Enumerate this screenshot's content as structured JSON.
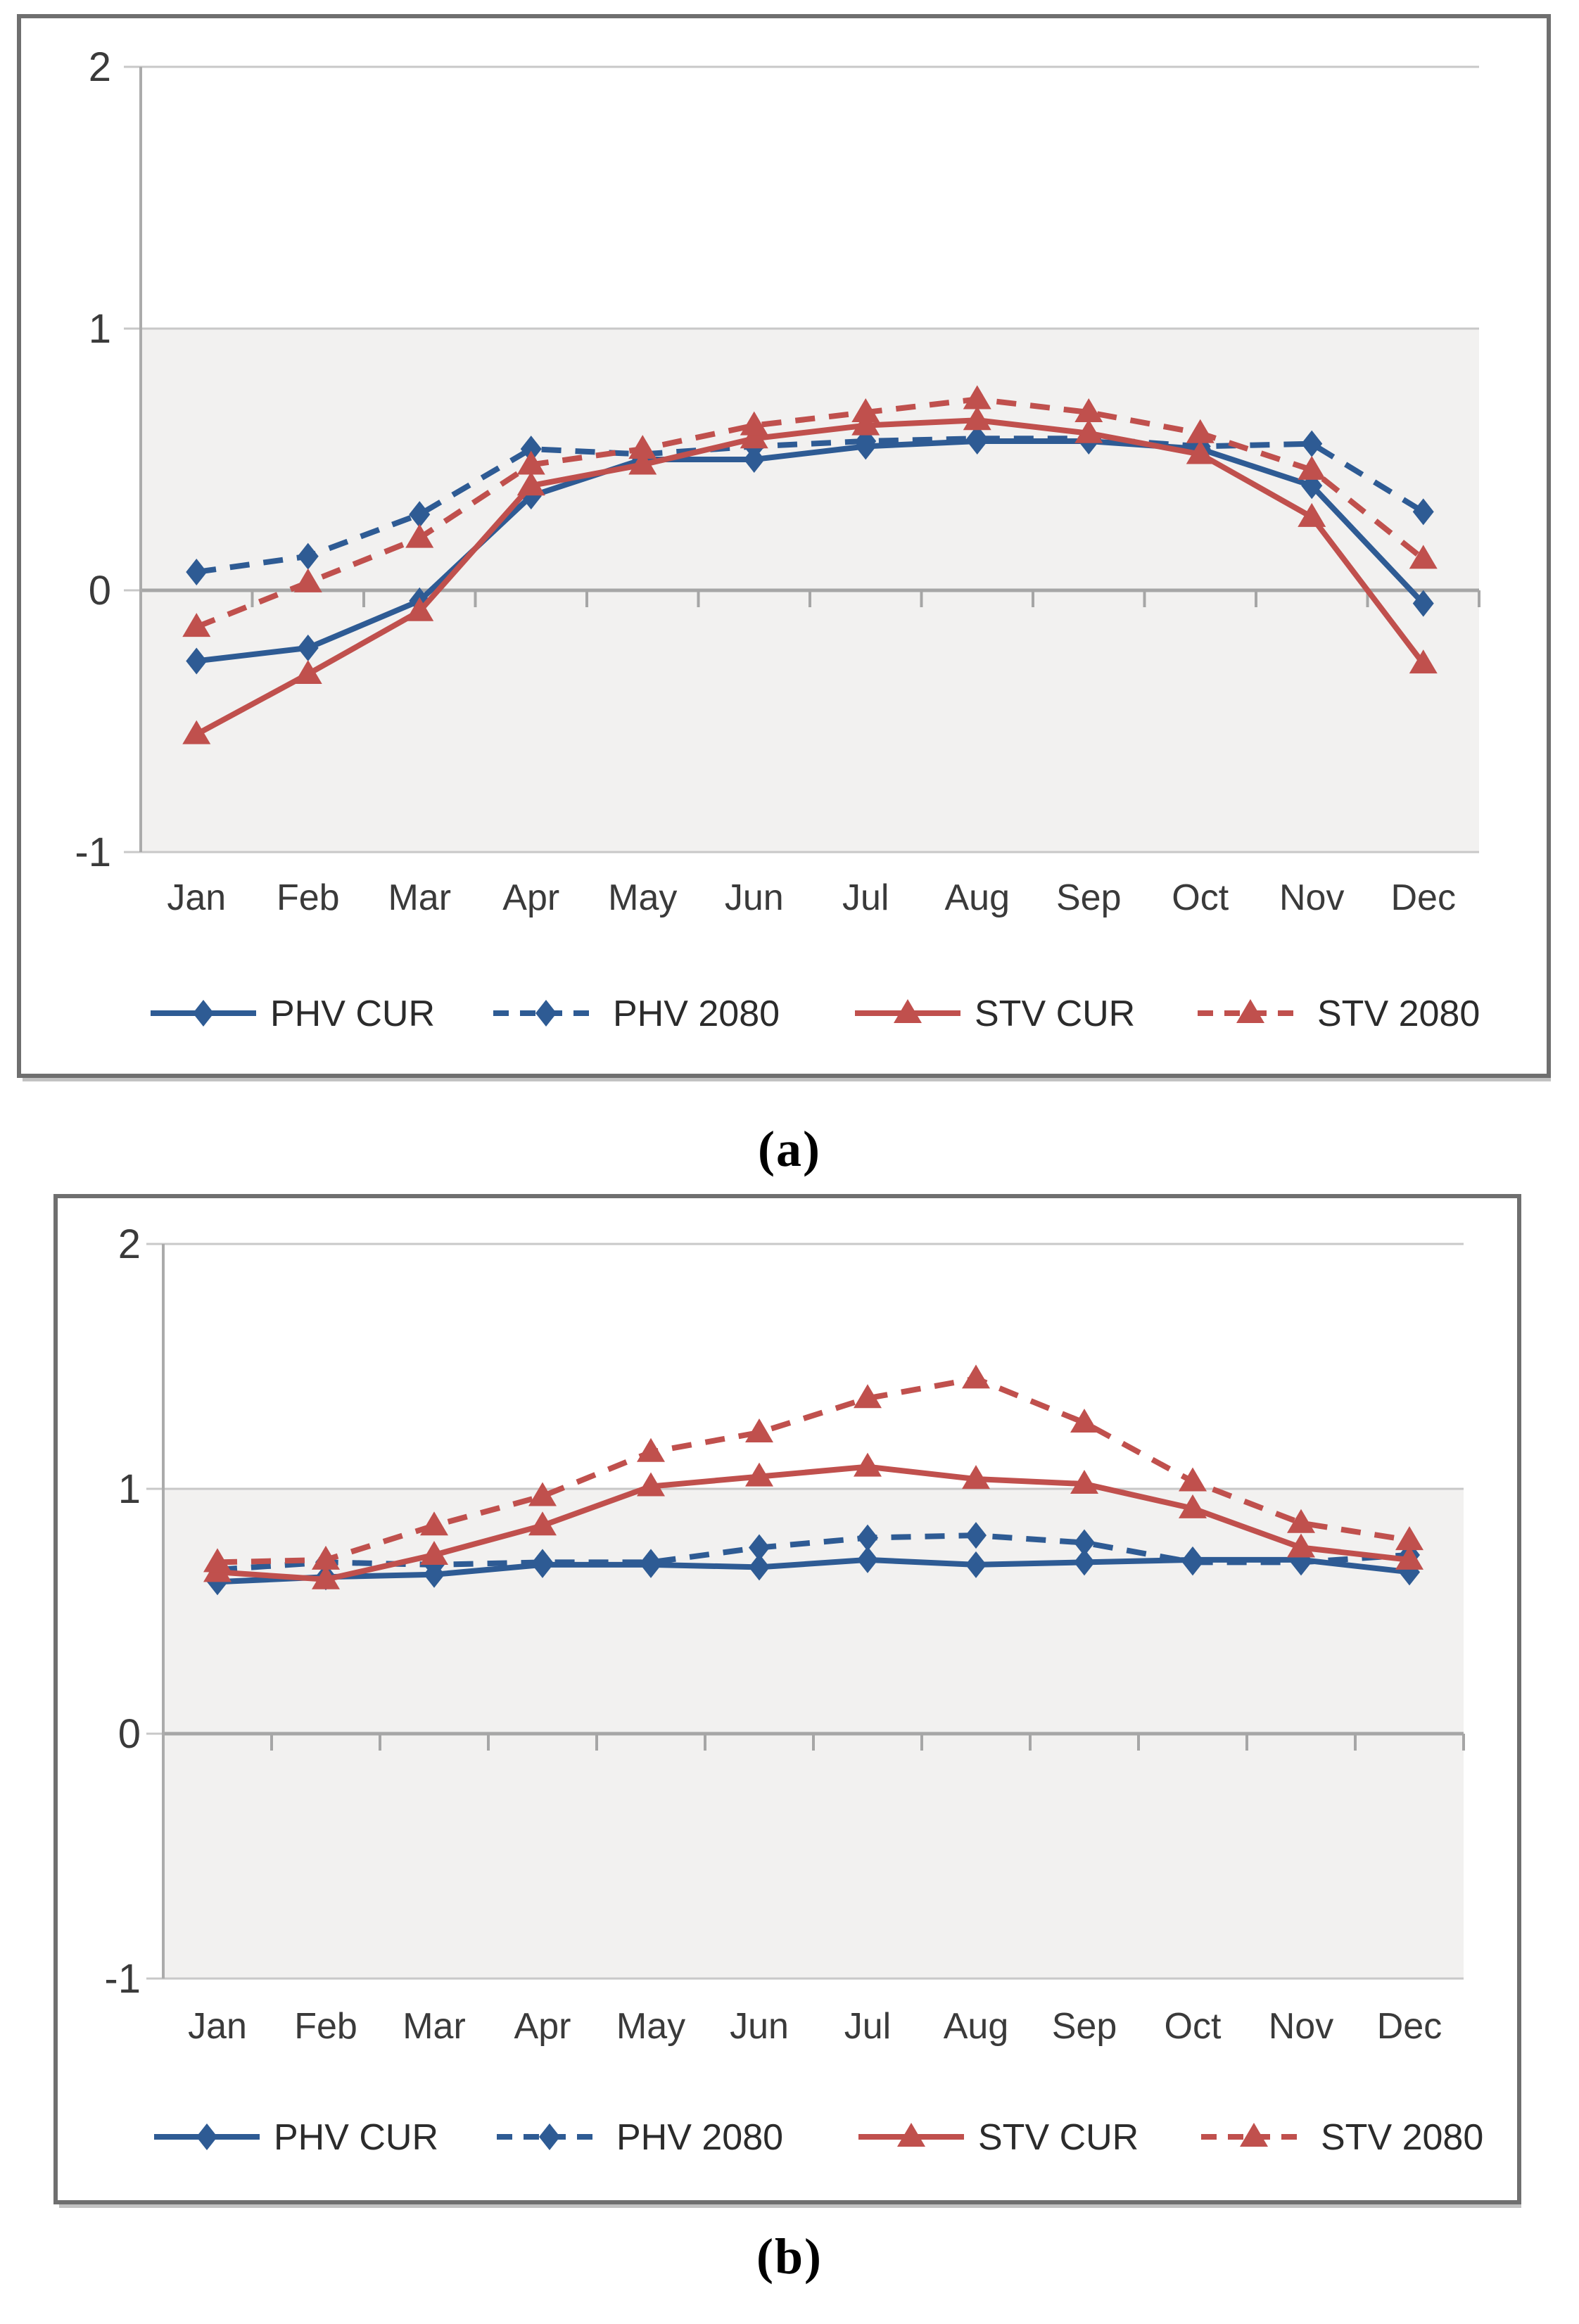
{
  "figure": {
    "captions": [
      {
        "label": "(a)"
      },
      {
        "label": "(b)"
      }
    ]
  },
  "palette": {
    "blue": "#2E5B94",
    "red": "#C0504D",
    "plot_bg": "#F2F1F0",
    "grid": "#C8C8C8",
    "zero_line": "#A6A6A6",
    "axis_line": "#ABABAB",
    "text": "#3A3A3A",
    "box_border": "#6F6F6F"
  },
  "chart_data": [
    {
      "id": "a",
      "type": "line",
      "title": "",
      "xlabel": "",
      "ylabel": "",
      "categories": [
        "Jan",
        "Feb",
        "Mar",
        "Apr",
        "May",
        "Jun",
        "Jul",
        "Aug",
        "Sep",
        "Oct",
        "Nov",
        "Dec"
      ],
      "ylim": [
        -1,
        2
      ],
      "yticks": [
        2,
        1,
        0,
        -1
      ],
      "grid": true,
      "shaded_band": [
        -1,
        1
      ],
      "legend_position": "bottom",
      "series": [
        {
          "name": "PHV CUR",
          "color": "blue",
          "dash": "solid",
          "marker": "diamond",
          "values": [
            -0.27,
            -0.22,
            -0.04,
            0.36,
            0.5,
            0.5,
            0.55,
            0.57,
            0.57,
            0.54,
            0.4,
            -0.05
          ]
        },
        {
          "name": "PHV 2080",
          "color": "blue",
          "dash": "dashed",
          "marker": "diamond",
          "values": [
            0.07,
            0.13,
            0.29,
            0.54,
            0.52,
            0.55,
            0.57,
            0.58,
            0.58,
            0.55,
            0.56,
            0.3
          ]
        },
        {
          "name": "STV CUR",
          "color": "red",
          "dash": "solid",
          "marker": "triangle",
          "values": [
            -0.55,
            -0.32,
            -0.08,
            0.4,
            0.48,
            0.58,
            0.63,
            0.65,
            0.6,
            0.52,
            0.28,
            -0.28
          ]
        },
        {
          "name": "STV 2080",
          "color": "red",
          "dash": "dashed",
          "marker": "triangle",
          "values": [
            -0.14,
            0.03,
            0.2,
            0.48,
            0.54,
            0.63,
            0.68,
            0.73,
            0.68,
            0.6,
            0.46,
            0.12
          ]
        }
      ]
    },
    {
      "id": "b",
      "type": "line",
      "title": "",
      "xlabel": "",
      "ylabel": "",
      "categories": [
        "Jan",
        "Feb",
        "Mar",
        "Apr",
        "May",
        "Jun",
        "Jul",
        "Aug",
        "Sep",
        "Oct",
        "Nov",
        "Dec"
      ],
      "ylim": [
        -1,
        2
      ],
      "yticks": [
        2,
        1,
        0,
        -1
      ],
      "grid": true,
      "shaded_band": [
        -1,
        1
      ],
      "legend_position": "bottom",
      "series": [
        {
          "name": "PHV CUR",
          "color": "blue",
          "dash": "solid",
          "marker": "diamond",
          "values": [
            0.62,
            0.64,
            0.65,
            0.69,
            0.69,
            0.68,
            0.71,
            0.69,
            0.7,
            0.71,
            0.71,
            0.66
          ]
        },
        {
          "name": "PHV 2080",
          "color": "blue",
          "dash": "dashed",
          "marker": "diamond",
          "values": [
            0.67,
            0.7,
            0.69,
            0.7,
            0.7,
            0.76,
            0.8,
            0.81,
            0.78,
            0.7,
            0.7,
            0.73
          ]
        },
        {
          "name": "STV CUR",
          "color": "red",
          "dash": "solid",
          "marker": "triangle",
          "values": [
            0.66,
            0.63,
            0.73,
            0.85,
            1.01,
            1.05,
            1.09,
            1.04,
            1.02,
            0.92,
            0.76,
            0.71
          ]
        },
        {
          "name": "STV 2080",
          "color": "red",
          "dash": "dashed",
          "marker": "triangle",
          "values": [
            0.7,
            0.71,
            0.85,
            0.97,
            1.15,
            1.23,
            1.37,
            1.45,
            1.27,
            1.03,
            0.86,
            0.79
          ]
        }
      ]
    }
  ]
}
